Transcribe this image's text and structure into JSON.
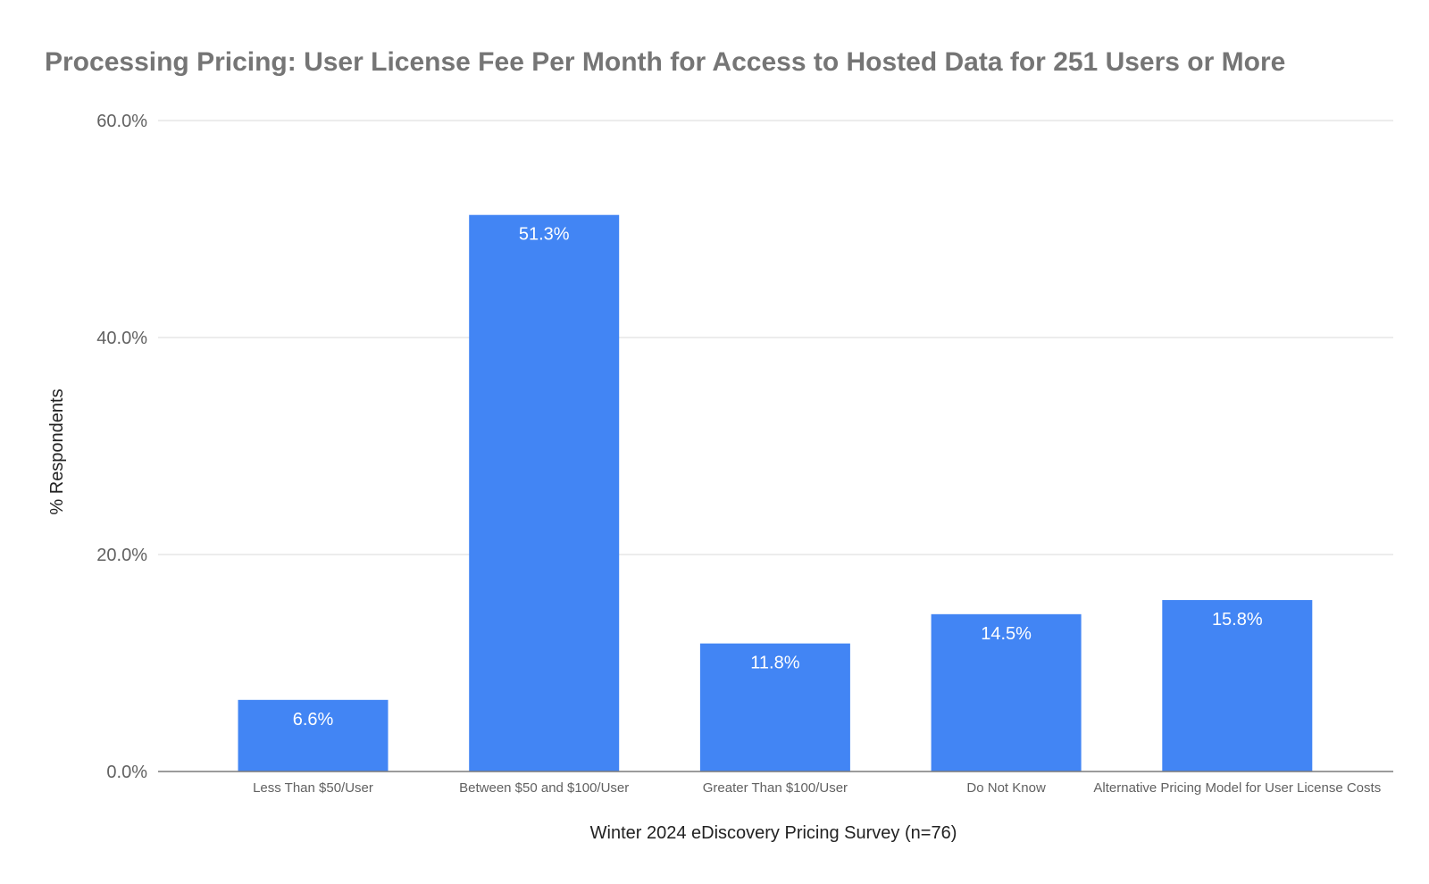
{
  "chart_data": {
    "type": "bar",
    "title": "Processing Pricing: User License Fee Per Month for Access to Hosted Data for 251 Users or More",
    "xlabel": "Winter 2024 eDiscovery Pricing Survey (n=76)",
    "ylabel": "% Respondents",
    "categories": [
      "Less Than $50/User",
      "Between $50 and $100/User",
      "Greater Than $100/User",
      "Do Not Know",
      "Alternative Pricing Model for User License Costs"
    ],
    "values": [
      6.6,
      51.3,
      11.8,
      14.5,
      15.8
    ],
    "data_labels": [
      "6.6%",
      "51.3%",
      "11.8%",
      "14.5%",
      "15.8%"
    ],
    "ylim": [
      0,
      60
    ],
    "yticks": [
      0,
      20,
      40,
      60
    ],
    "ytick_labels": [
      "0.0%",
      "20.0%",
      "40.0%",
      "60.0%"
    ],
    "grid": true,
    "legend": "none",
    "bar_color": "#4285f4"
  }
}
